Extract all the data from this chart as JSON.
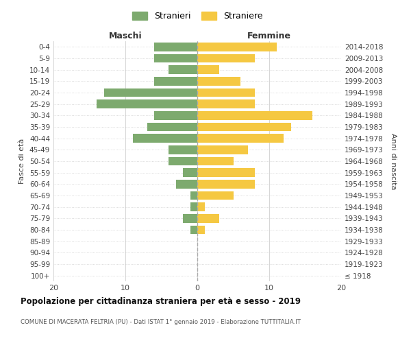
{
  "age_groups": [
    "100+",
    "95-99",
    "90-94",
    "85-89",
    "80-84",
    "75-79",
    "70-74",
    "65-69",
    "60-64",
    "55-59",
    "50-54",
    "45-49",
    "40-44",
    "35-39",
    "30-34",
    "25-29",
    "20-24",
    "15-19",
    "10-14",
    "5-9",
    "0-4"
  ],
  "birth_years": [
    "≤ 1918",
    "1919-1923",
    "1924-1928",
    "1929-1933",
    "1934-1938",
    "1939-1943",
    "1944-1948",
    "1949-1953",
    "1954-1958",
    "1959-1963",
    "1964-1968",
    "1969-1973",
    "1974-1978",
    "1979-1983",
    "1984-1988",
    "1989-1993",
    "1994-1998",
    "1999-2003",
    "2004-2008",
    "2009-2013",
    "2014-2018"
  ],
  "maschi": [
    0,
    0,
    0,
    0,
    1,
    2,
    1,
    1,
    3,
    2,
    4,
    4,
    9,
    7,
    6,
    14,
    13,
    6,
    4,
    6,
    6
  ],
  "femmine": [
    0,
    0,
    0,
    0,
    1,
    3,
    1,
    5,
    8,
    8,
    5,
    7,
    12,
    13,
    16,
    8,
    8,
    6,
    3,
    8,
    11
  ],
  "color_maschi": "#7daa6e",
  "color_femmine": "#f5c842",
  "title": "Popolazione per cittadinanza straniera per età e sesso - 2019",
  "subtitle": "COMUNE DI MACERATA FELTRIA (PU) - Dati ISTAT 1° gennaio 2019 - Elaborazione TUTTITALIA.IT",
  "xlabel_left": "Maschi",
  "xlabel_right": "Femmine",
  "ylabel_left": "Fasce di età",
  "ylabel_right": "Anni di nascita",
  "legend_maschi": "Stranieri",
  "legend_femmine": "Straniere",
  "xlim": 20,
  "background_color": "#ffffff",
  "grid_color": "#d0d0d0"
}
